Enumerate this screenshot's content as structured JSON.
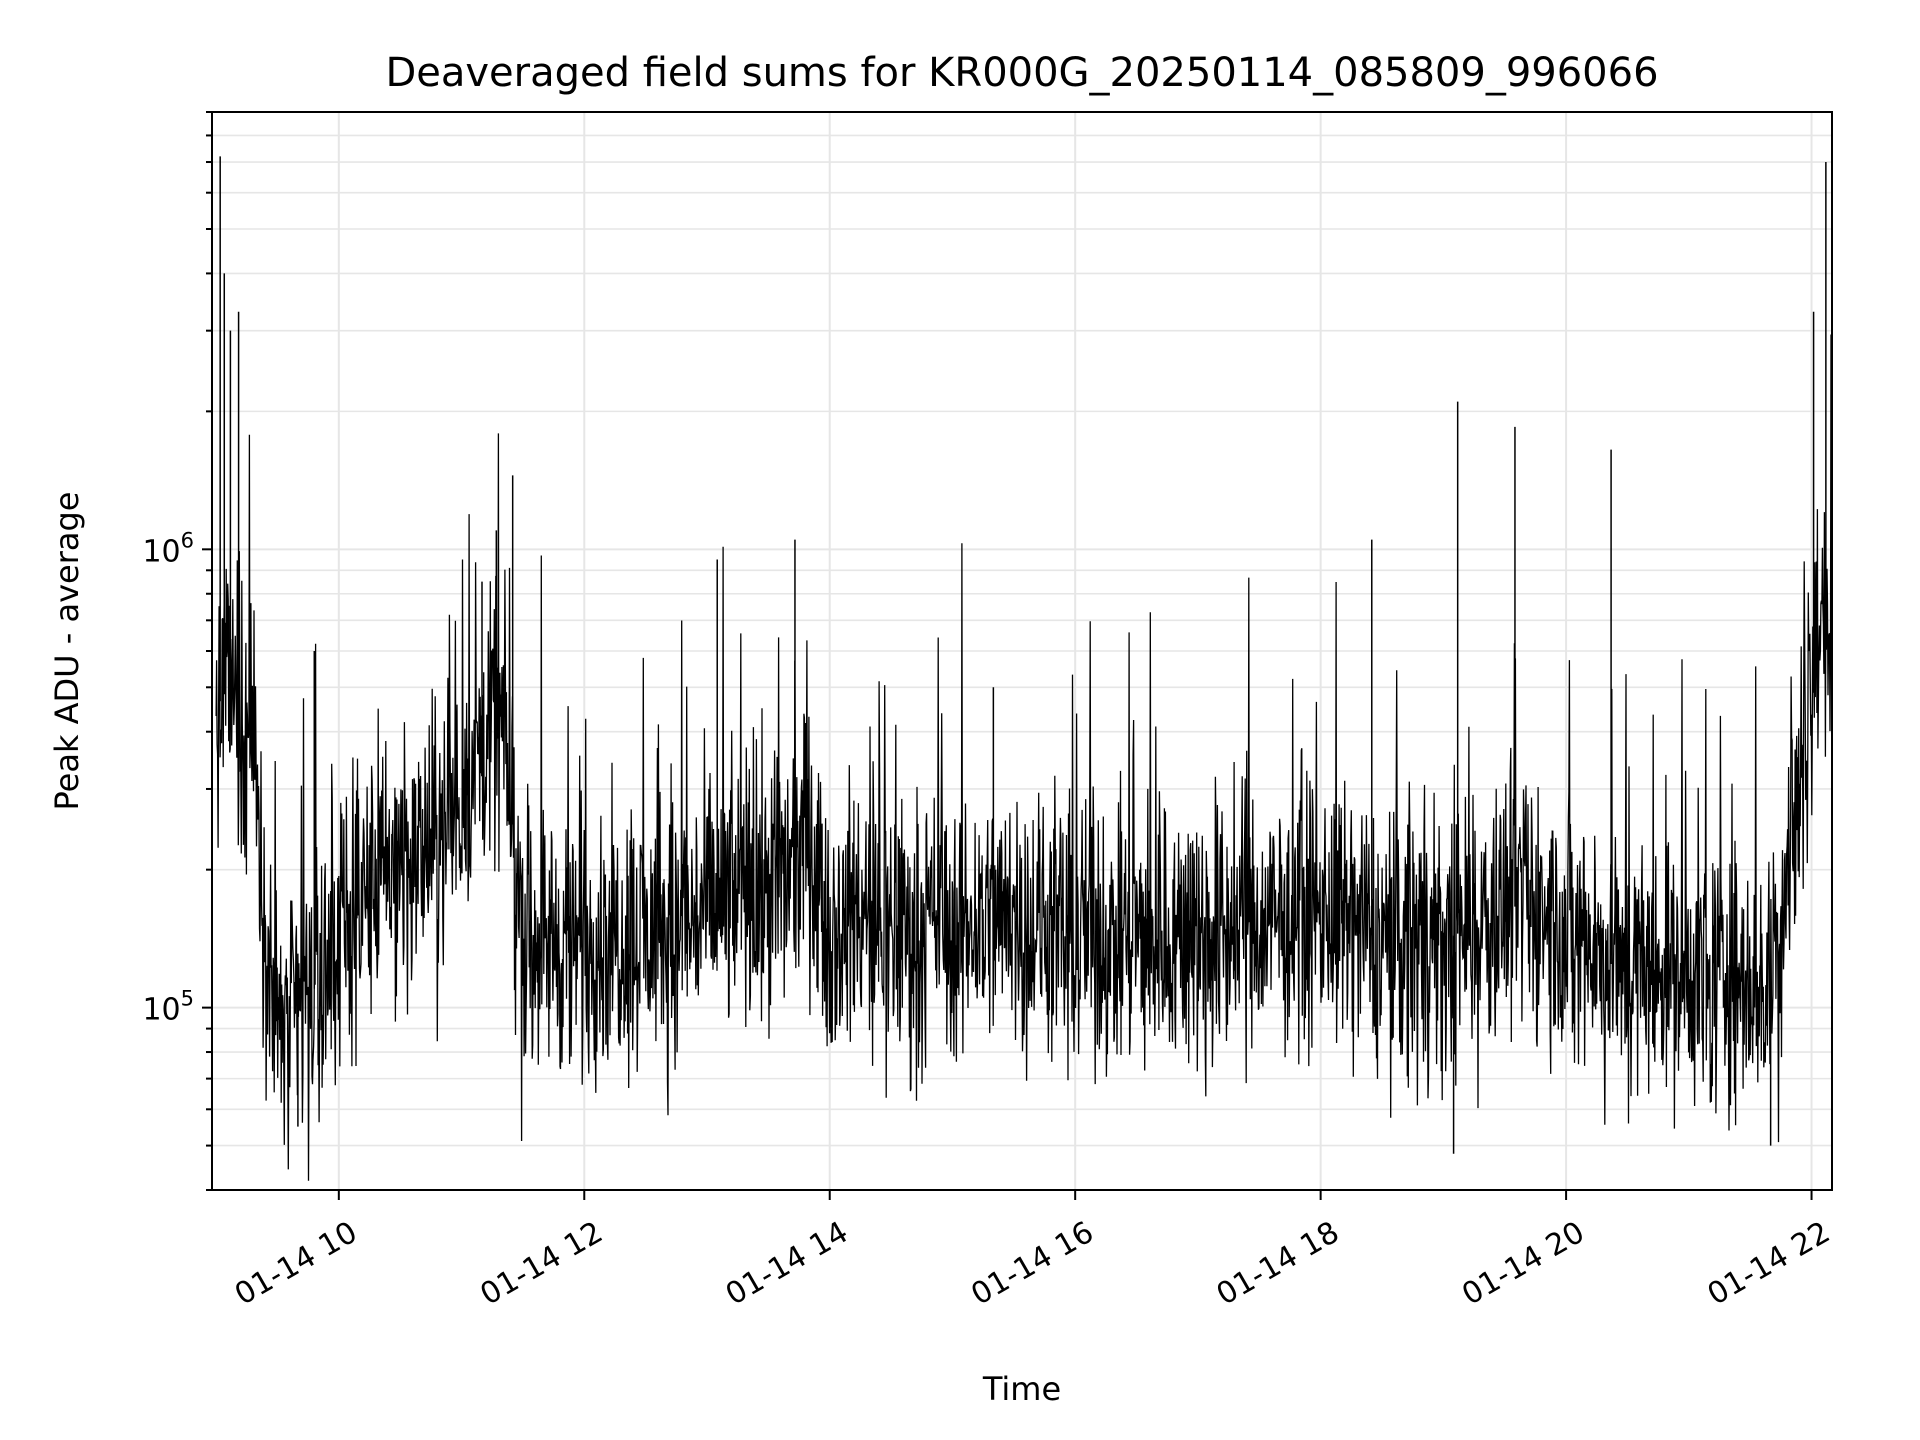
{
  "chart_data": {
    "type": "line",
    "title": "Deaveraged field sums for KR000G_20250114_085809_996066",
    "xlabel": "Time",
    "ylabel": "Peak ADU - average",
    "y_scale": "log",
    "ylim": [
      40000,
      9000000
    ],
    "xlim": [
      "2025-01-14 08:58",
      "2025-01-14 22:10"
    ],
    "grid": true,
    "line_color": "#000000",
    "grid_color": "#e6e6e6",
    "x_ticks": [
      {
        "value": "2025-01-14 10:00",
        "label": "01-14 10"
      },
      {
        "value": "2025-01-14 12:00",
        "label": "01-14 12"
      },
      {
        "value": "2025-01-14 14:00",
        "label": "01-14 14"
      },
      {
        "value": "2025-01-14 16:00",
        "label": "01-14 16"
      },
      {
        "value": "2025-01-14 18:00",
        "label": "01-14 18"
      },
      {
        "value": "2025-01-14 20:00",
        "label": "01-14 20"
      },
      {
        "value": "2025-01-14 22:00",
        "label": "01-14 22"
      }
    ],
    "y_ticks": [
      {
        "value": 100000,
        "base": "10",
        "exp": "5"
      },
      {
        "value": 1000000,
        "base": "10",
        "exp": "6"
      }
    ],
    "series": [
      {
        "x": [
          "2025-01-14 09:00",
          "2025-01-14 09:06",
          "2025-01-14 09:12",
          "2025-01-14 09:18",
          "2025-01-14 09:24",
          "2025-01-14 09:30",
          "2025-01-14 09:36",
          "2025-01-14 09:42",
          "2025-01-14 09:48",
          "2025-01-14 09:54",
          "2025-01-14 10:00",
          "2025-01-14 10:10",
          "2025-01-14 10:20",
          "2025-01-14 10:30",
          "2025-01-14 10:40",
          "2025-01-14 10:50",
          "2025-01-14 11:00",
          "2025-01-14 11:10",
          "2025-01-14 11:20",
          "2025-01-14 11:30",
          "2025-01-14 11:40",
          "2025-01-14 11:50",
          "2025-01-14 12:00",
          "2025-01-14 12:20",
          "2025-01-14 12:40",
          "2025-01-14 13:00",
          "2025-01-14 13:20",
          "2025-01-14 13:40",
          "2025-01-14 13:50",
          "2025-01-14 14:00",
          "2025-01-14 14:20",
          "2025-01-14 14:40",
          "2025-01-14 15:00",
          "2025-01-14 15:20",
          "2025-01-14 15:40",
          "2025-01-14 16:00",
          "2025-01-14 16:20",
          "2025-01-14 16:40",
          "2025-01-14 17:00",
          "2025-01-14 17:20",
          "2025-01-14 17:40",
          "2025-01-14 18:00",
          "2025-01-14 18:20",
          "2025-01-14 18:40",
          "2025-01-14 19:00",
          "2025-01-14 19:20",
          "2025-01-14 19:40",
          "2025-01-14 20:00",
          "2025-01-14 20:20",
          "2025-01-14 20:40",
          "2025-01-14 21:00",
          "2025-01-14 21:20",
          "2025-01-14 21:40",
          "2025-01-14 21:50",
          "2025-01-14 22:00",
          "2025-01-14 22:05",
          "2025-01-14 22:10"
        ],
        "y": [
          450000,
          500000,
          430000,
          420000,
          150000,
          95000,
          85000,
          105000,
          110000,
          115000,
          140000,
          170000,
          190000,
          200000,
          215000,
          240000,
          290000,
          370000,
          420000,
          150000,
          145000,
          135000,
          140000,
          145000,
          140000,
          165000,
          180000,
          200000,
          210000,
          150000,
          155000,
          145000,
          150000,
          160000,
          150000,
          145000,
          140000,
          145000,
          145000,
          150000,
          150000,
          160000,
          145000,
          140000,
          140000,
          155000,
          170000,
          150000,
          125000,
          120000,
          120000,
          115000,
          110000,
          240000,
          520000,
          700000,
          720000
        ],
        "peaks": [
          {
            "x": "2025-01-14 09:02",
            "y": 7200000
          },
          {
            "x": "2025-01-14 09:04",
            "y": 4000000
          },
          {
            "x": "2025-01-14 09:07",
            "y": 3000000
          },
          {
            "x": "2025-01-14 09:11",
            "y": 3300000
          },
          {
            "x": "2025-01-14 09:48",
            "y": 600000
          },
          {
            "x": "2025-01-14 11:10",
            "y": 850000
          },
          {
            "x": "2025-01-14 11:17",
            "y": 1100000
          },
          {
            "x": "2025-01-14 11:25",
            "y": 1450000
          },
          {
            "x": "2025-01-14 13:05",
            "y": 950000
          },
          {
            "x": "2025-01-14 13:43",
            "y": 1050000
          },
          {
            "x": "2025-01-14 15:20",
            "y": 500000
          },
          {
            "x": "2025-01-14 18:25",
            "y": 1050000
          },
          {
            "x": "2025-01-14 19:07",
            "y": 2100000
          },
          {
            "x": "2025-01-14 19:35",
            "y": 1850000
          },
          {
            "x": "2025-01-14 20:22",
            "y": 1650000
          },
          {
            "x": "2025-01-14 22:01",
            "y": 3300000
          },
          {
            "x": "2025-01-14 22:07",
            "y": 7000000
          }
        ],
        "dips": [
          {
            "x": "2025-01-14 09:40",
            "y": 55000
          },
          {
            "x": "2025-01-14 19:05",
            "y": 48000
          },
          {
            "x": "2025-01-14 21:40",
            "y": 50000
          }
        ]
      }
    ]
  }
}
